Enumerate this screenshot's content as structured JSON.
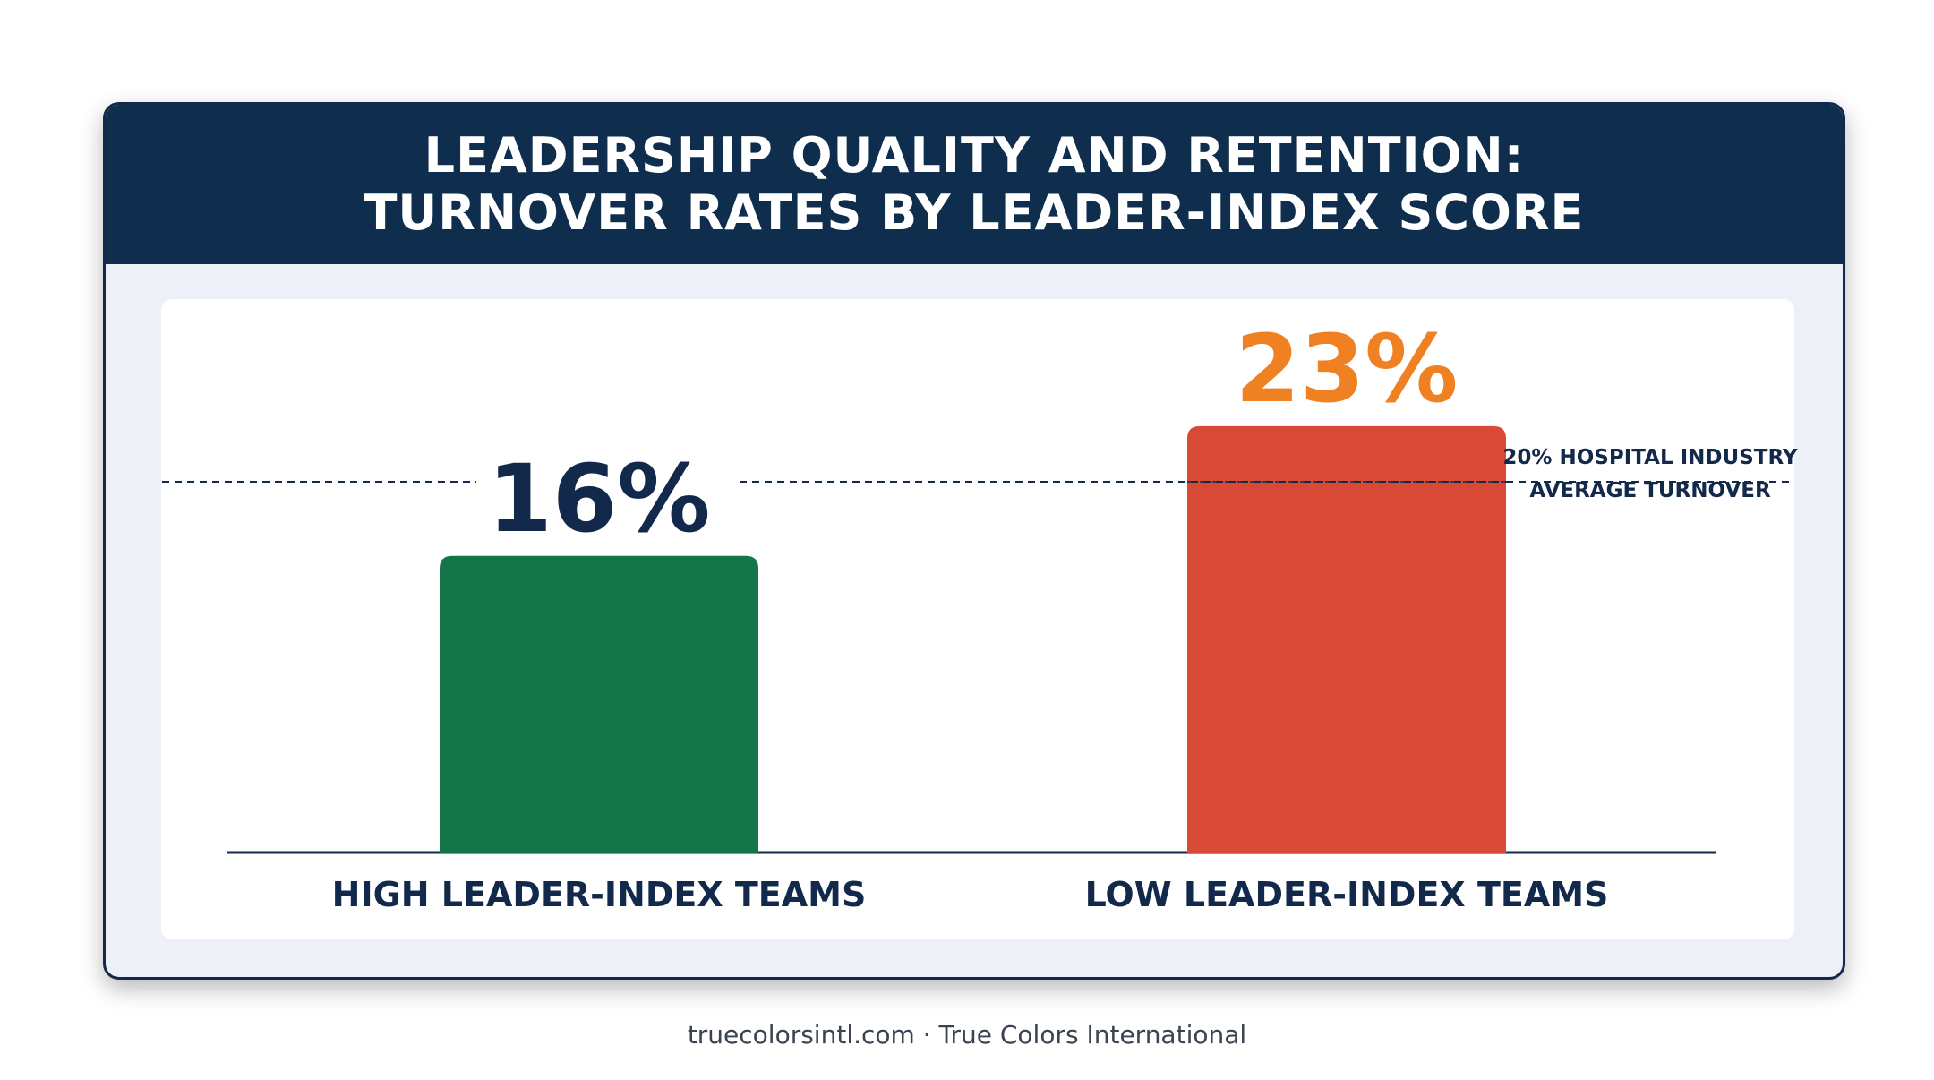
{
  "header": {
    "title_line1": "LEADERSHIP QUALITY AND RETENTION:",
    "title_line2": "TURNOVER RATES BY LEADER-INDEX SCORE"
  },
  "footer": {
    "text": "truecolorsintl.com · True Colors International"
  },
  "colors": {
    "header_bg": "#0f2d4c",
    "high_bar": "#147548",
    "low_bar": "#d94a36",
    "high_value_text": "#13294b",
    "low_value_text": "#f08122",
    "reference_line": "#13294b"
  },
  "chart_data": {
    "type": "bar",
    "title": "LEADERSHIP QUALITY AND RETENTION: TURNOVER RATES BY LEADER-INDEX SCORE",
    "categories": [
      "HIGH LEADER-INDEX TEAMS",
      "LOW LEADER-INDEX TEAMS"
    ],
    "values": [
      16,
      23
    ],
    "value_labels": [
      "16%",
      "23%"
    ],
    "ylim": [
      0,
      25
    ],
    "grid": false,
    "reference_line": {
      "value": 20,
      "label_line1": "20% HOSPITAL INDUSTRY",
      "label_line2": "AVERAGE TURNOVER"
    }
  }
}
